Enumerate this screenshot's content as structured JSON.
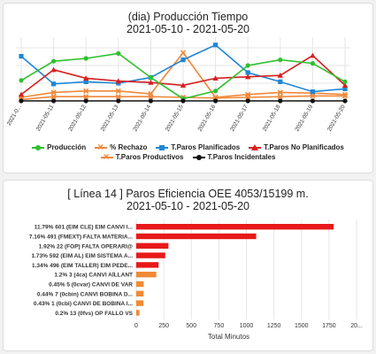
{
  "chart_data": [
    {
      "type": "line",
      "title": "(dia) Producción Tiempo",
      "subtitle": "2021-05-10 - 2021-05-20",
      "categories": [
        "2021-0...",
        "2021-05-11",
        "2021-05-12",
        "2021-05-13",
        "2021-05-14",
        "2021-05-15",
        "2021-05-16",
        "2021-05-17",
        "2021-05-18",
        "2021-05-19",
        "2021-05-20"
      ],
      "grid": true,
      "legend_position": "bottom",
      "series": [
        {
          "name": "Producción",
          "color": "#2ec02e",
          "marker": "circle",
          "values": [
            29,
            56,
            60,
            67,
            33,
            3,
            14,
            50,
            58,
            53,
            27
          ]
        },
        {
          "name": "% Rechazo",
          "color": "#f0883a",
          "marker": "x",
          "values": [
            5,
            12,
            14,
            14,
            10,
            68,
            5,
            9,
            12,
            11,
            9
          ]
        },
        {
          "name": "T.Paros Planificados",
          "color": "#1f86d6",
          "marker": "square",
          "values": [
            63,
            24,
            27,
            25,
            33,
            58,
            79,
            40,
            27,
            13,
            17
          ]
        },
        {
          "name": "T.Paros No Planificados",
          "color": "#d61f1f",
          "marker": "triangle",
          "values": [
            9,
            44,
            32,
            28,
            26,
            22,
            32,
            34,
            36,
            64,
            22
          ]
        },
        {
          "name": "T.Paros Productivos",
          "color": "#f0883a",
          "marker": "x",
          "values": [
            2,
            6,
            6,
            6,
            6,
            5,
            4,
            5,
            6,
            7,
            7
          ]
        },
        {
          "name": "T.Paros Incidentales",
          "color": "#111111",
          "marker": "circle",
          "values": [
            0,
            0,
            0,
            0,
            0,
            0,
            0,
            0,
            0,
            0,
            0
          ]
        }
      ]
    },
    {
      "type": "bar",
      "orientation": "horizontal",
      "title": "[ Línea 14 ] Paros Eficiencia OEE 4053/15199 m.",
      "subtitle": "2021-05-10 - 2021-05-20",
      "xlabel": "Total Minutos",
      "xlim": [
        0,
        2000
      ],
      "x_ticks": [
        "0",
        "250",
        "500",
        "750",
        "1000",
        "1250",
        "1500",
        "1750",
        "20..."
      ],
      "grid": true,
      "categories": [
        "11.79% 601 (EIM CLE) EIM CANVI I...",
        "7.16% 491 (FMEXT) FALTA MATERIA...",
        "1.92% 22 (FOP) FALTA OPERARI@",
        "1.73% 592 (EIM AL) EIM SISTEMA A...",
        "1.34% 496 (EIM TALLER) EIM PEDE...",
        "1.2% 3 (4ca) CANVI AÏLLANT",
        "0.45% 5 (0cvar) CANVI DE VAR",
        "0.44% 7 (0cbin) CANVI BOBINA D...",
        "0.43% 1 (0cbi) CANVI DE BOBINA I...",
        "0.2% 13 (0fvs) OP FALLO VS"
      ],
      "values": [
        1792,
        1089,
        292,
        263,
        203,
        182,
        68,
        67,
        65,
        30
      ],
      "bar_colors": [
        "#e81919",
        "#e81919",
        "#e81919",
        "#e81919",
        "#e81919",
        "#f08a34",
        "#f08a34",
        "#f08a34",
        "#f08a34",
        "#f08a34"
      ]
    }
  ]
}
